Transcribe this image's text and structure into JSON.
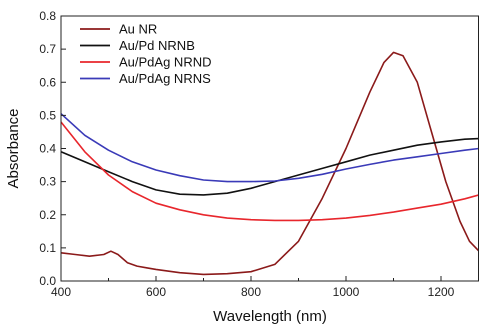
{
  "chart_data": {
    "type": "line",
    "xlabel": "Wavelength (nm)",
    "ylabel": "Absorbance",
    "xlim": [
      400,
      1280
    ],
    "ylim": [
      0.0,
      0.8
    ],
    "x_ticks": [
      400,
      600,
      800,
      1000,
      1200
    ],
    "x_tick_labels": [
      "400",
      "600",
      "800",
      "1000",
      "1200"
    ],
    "y_ticks": [
      0.0,
      0.1,
      0.2,
      0.3,
      0.4,
      0.5,
      0.6,
      0.7,
      0.8
    ],
    "y_tick_labels": [
      "0.0",
      "0.1",
      "0.2",
      "0.3",
      "0.4",
      "0.5",
      "0.6",
      "0.7",
      "0.8"
    ],
    "grid": false,
    "legend_position": "top-left",
    "series": [
      {
        "name": "Au NR",
        "color": "#8b1a1a",
        "points": [
          [
            400,
            0.085
          ],
          [
            430,
            0.08
          ],
          [
            460,
            0.075
          ],
          [
            490,
            0.08
          ],
          [
            505,
            0.09
          ],
          [
            520,
            0.08
          ],
          [
            540,
            0.055
          ],
          [
            560,
            0.045
          ],
          [
            580,
            0.04
          ],
          [
            600,
            0.035
          ],
          [
            650,
            0.025
          ],
          [
            700,
            0.02
          ],
          [
            750,
            0.022
          ],
          [
            800,
            0.028
          ],
          [
            850,
            0.05
          ],
          [
            900,
            0.12
          ],
          [
            950,
            0.25
          ],
          [
            1000,
            0.4
          ],
          [
            1050,
            0.57
          ],
          [
            1080,
            0.66
          ],
          [
            1100,
            0.69
          ],
          [
            1120,
            0.68
          ],
          [
            1150,
            0.6
          ],
          [
            1180,
            0.45
          ],
          [
            1210,
            0.3
          ],
          [
            1240,
            0.18
          ],
          [
            1260,
            0.12
          ],
          [
            1280,
            0.09
          ]
        ]
      },
      {
        "name": "Au/Pd NRNB",
        "color": "#111111",
        "points": [
          [
            400,
            0.39
          ],
          [
            450,
            0.36
          ],
          [
            500,
            0.33
          ],
          [
            550,
            0.3
          ],
          [
            600,
            0.275
          ],
          [
            650,
            0.262
          ],
          [
            700,
            0.26
          ],
          [
            750,
            0.265
          ],
          [
            800,
            0.28
          ],
          [
            850,
            0.3
          ],
          [
            900,
            0.32
          ],
          [
            950,
            0.34
          ],
          [
            1000,
            0.36
          ],
          [
            1050,
            0.38
          ],
          [
            1100,
            0.395
          ],
          [
            1150,
            0.41
          ],
          [
            1200,
            0.42
          ],
          [
            1250,
            0.428
          ],
          [
            1280,
            0.43
          ]
        ]
      },
      {
        "name": "Au/PdAg NRND",
        "color": "#e8262c",
        "points": [
          [
            400,
            0.48
          ],
          [
            450,
            0.39
          ],
          [
            500,
            0.32
          ],
          [
            550,
            0.27
          ],
          [
            600,
            0.235
          ],
          [
            650,
            0.215
          ],
          [
            700,
            0.2
          ],
          [
            750,
            0.19
          ],
          [
            800,
            0.185
          ],
          [
            850,
            0.183
          ],
          [
            900,
            0.183
          ],
          [
            950,
            0.185
          ],
          [
            1000,
            0.19
          ],
          [
            1050,
            0.198
          ],
          [
            1100,
            0.208
          ],
          [
            1150,
            0.22
          ],
          [
            1200,
            0.232
          ],
          [
            1250,
            0.248
          ],
          [
            1280,
            0.26
          ]
        ]
      },
      {
        "name": "Au/PdAg NRNS",
        "color": "#3a3ab8",
        "points": [
          [
            400,
            0.505
          ],
          [
            450,
            0.44
          ],
          [
            500,
            0.395
          ],
          [
            550,
            0.36
          ],
          [
            600,
            0.335
          ],
          [
            650,
            0.318
          ],
          [
            700,
            0.305
          ],
          [
            750,
            0.3
          ],
          [
            800,
            0.3
          ],
          [
            850,
            0.302
          ],
          [
            900,
            0.31
          ],
          [
            950,
            0.322
          ],
          [
            1000,
            0.338
          ],
          [
            1050,
            0.352
          ],
          [
            1100,
            0.365
          ],
          [
            1150,
            0.375
          ],
          [
            1200,
            0.385
          ],
          [
            1250,
            0.395
          ],
          [
            1280,
            0.4
          ]
        ]
      }
    ]
  }
}
